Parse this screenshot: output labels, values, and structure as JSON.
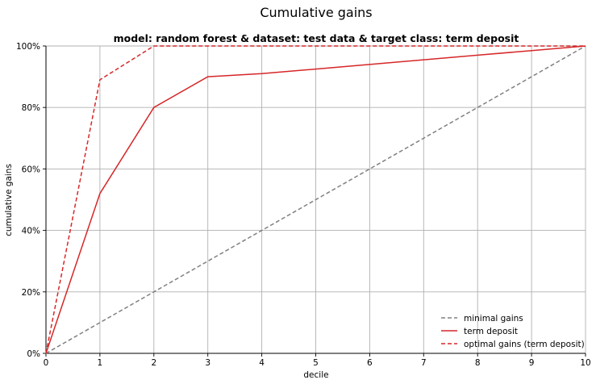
{
  "chart_data": {
    "type": "line",
    "suptitle": "Cumulative gains",
    "title": "model: random forest & dataset: test data & target class: term deposit",
    "xlabel": "decile",
    "ylabel": "cumulative gains",
    "xlim": [
      0,
      10
    ],
    "ylim": [
      0,
      1
    ],
    "x_ticks": [
      "0",
      "1",
      "2",
      "3",
      "4",
      "5",
      "6",
      "7",
      "8",
      "9",
      "10"
    ],
    "y_ticks": [
      "0%",
      "20%",
      "40%",
      "60%",
      "80%",
      "100%"
    ],
    "grid": true,
    "legend_position": "lower-right",
    "series": [
      {
        "name": "minimal gains",
        "color": "#808080",
        "style": "dashed",
        "x": [
          0,
          10
        ],
        "y": [
          0,
          1
        ]
      },
      {
        "name": "term deposit",
        "color": "#d62728",
        "style": "solid",
        "x": [
          0,
          1,
          2,
          3,
          4,
          5,
          6,
          7,
          8,
          9,
          10
        ],
        "y": [
          0,
          0.52,
          0.8,
          0.9,
          0.91,
          0.925,
          0.94,
          0.955,
          0.97,
          0.985,
          1.0
        ]
      },
      {
        "name": "optimal gains (term deposit)",
        "color": "#d62728",
        "style": "dashed",
        "x": [
          0,
          1,
          2,
          10
        ],
        "y": [
          0,
          0.89,
          1.0,
          1.0
        ]
      }
    ]
  }
}
